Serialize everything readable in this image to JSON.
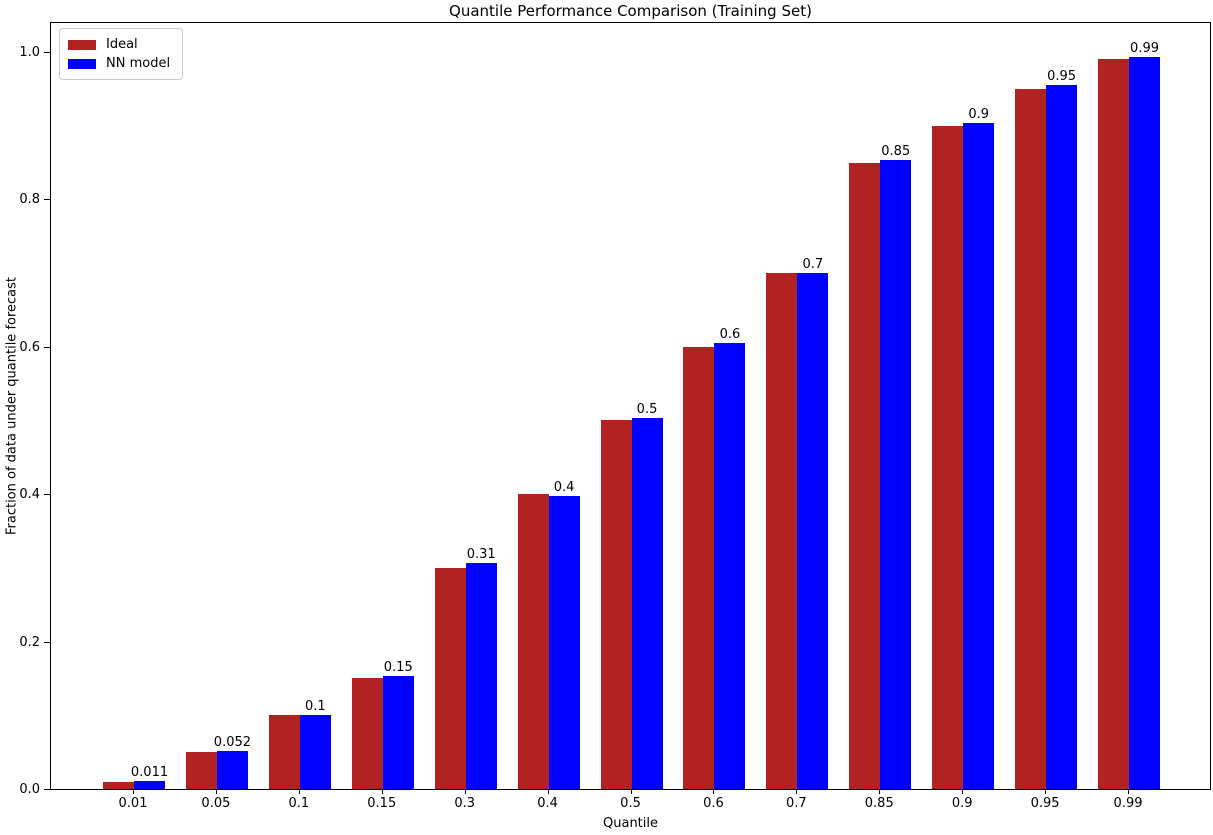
{
  "figure": {
    "title": "Quantile Performance Comparison (Training Set)",
    "xlabel": "Quantile",
    "ylabel": "Fraction of data under quantile forecast"
  },
  "chart_data": {
    "type": "bar",
    "title": "Quantile Performance Comparison (Training Set)",
    "xlabel": "Quantile",
    "ylabel": "Fraction of data under quantile forecast",
    "categories": [
      "0.01",
      "0.05",
      "0.1",
      "0.15",
      "0.3",
      "0.4",
      "0.5",
      "0.6",
      "0.7",
      "0.85",
      "0.9",
      "0.95",
      "0.99"
    ],
    "series": [
      {
        "name": "Ideal",
        "color": "#b22222",
        "values": [
          0.01,
          0.05,
          0.1,
          0.15,
          0.3,
          0.4,
          0.5,
          0.6,
          0.7,
          0.85,
          0.9,
          0.95,
          0.99
        ]
      },
      {
        "name": "NN model",
        "color": "#0000ff",
        "values": [
          0.011,
          0.052,
          0.101,
          0.153,
          0.306,
          0.398,
          0.504,
          0.605,
          0.7,
          0.853,
          0.903,
          0.955,
          0.993
        ],
        "bar_labels": [
          "0.011",
          "0.052",
          "0.1",
          "0.15",
          "0.31",
          "0.4",
          "0.5",
          "0.6",
          "0.7",
          "0.85",
          "0.9",
          "0.95",
          "0.99"
        ]
      }
    ],
    "yticks": [
      "0.0",
      "0.2",
      "0.4",
      "0.6",
      "0.8",
      "1.0"
    ],
    "ylim": [
      0,
      1.042
    ],
    "xlim_units": [
      -1,
      13
    ],
    "legend_position": "upper left",
    "grid": false,
    "background": "#ffffff"
  }
}
